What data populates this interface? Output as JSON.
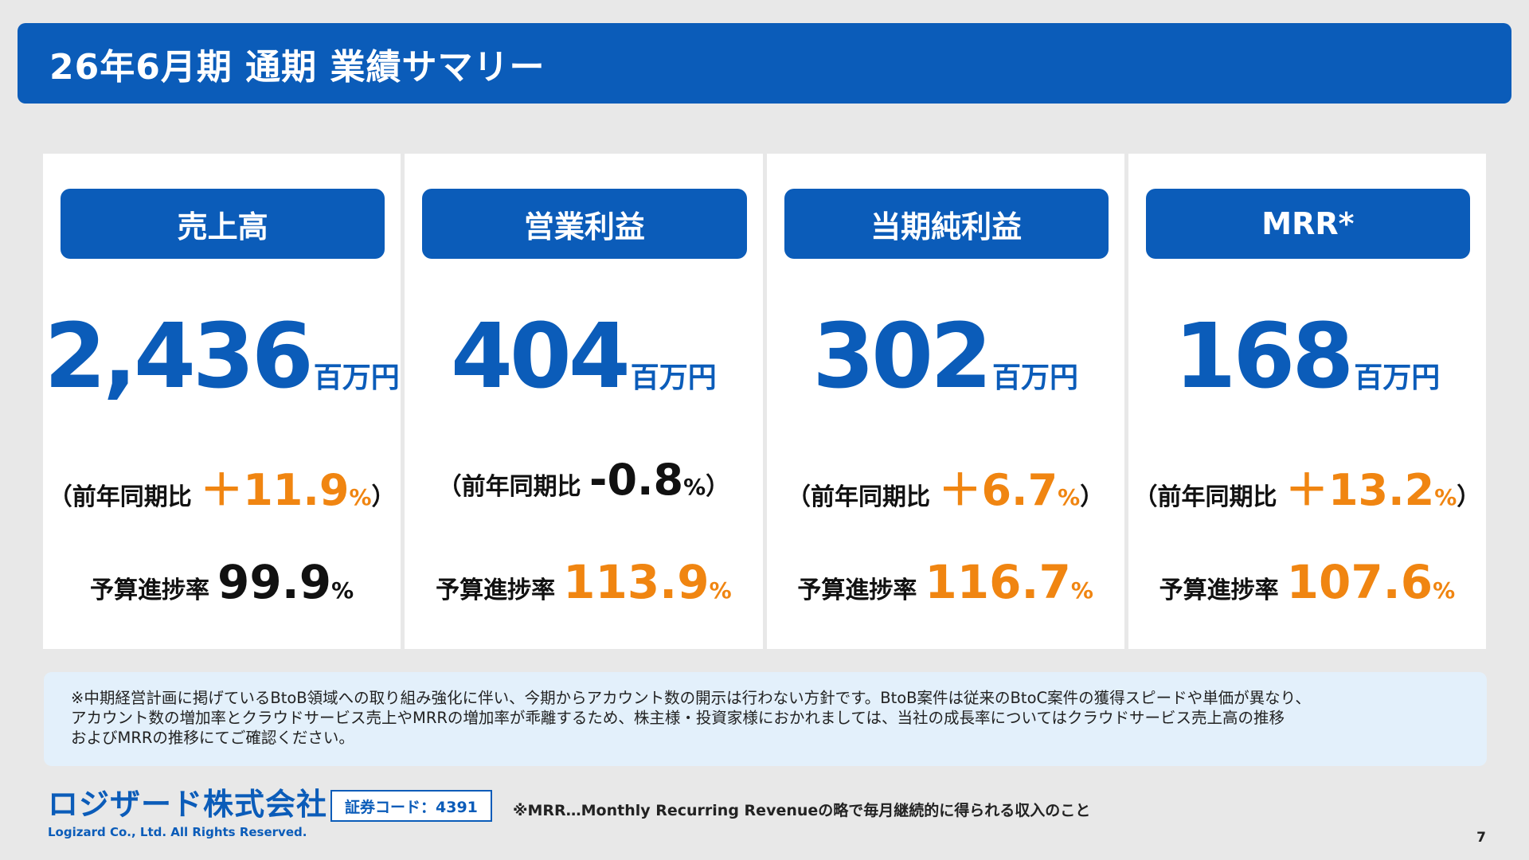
{
  "title": "26年6月期 通期 業績サマリー",
  "cards": [
    {
      "label": "売上高",
      "value": "2,436",
      "unit": "百万円",
      "yoy_prefix": "（前年同期比",
      "yoy_value": "＋11.9",
      "yoy_pct": "%",
      "yoy_suffix": "）",
      "budget_label": "予算進捗率",
      "budget_value": "99.9",
      "budget_pct": "%"
    },
    {
      "label": "営業利益",
      "value": "404",
      "unit": "百万円",
      "yoy_prefix": "（前年同期比",
      "yoy_value": "-0.8",
      "yoy_pct": "%",
      "yoy_suffix": "）",
      "budget_label": "予算進捗率",
      "budget_value": "113.9",
      "budget_pct": "%"
    },
    {
      "label": "当期純利益",
      "value": "302",
      "unit": "百万円",
      "yoy_prefix": "（前年同期比",
      "yoy_value": "＋6.7",
      "yoy_pct": "%",
      "yoy_suffix": "）",
      "budget_label": "予算進捗率",
      "budget_value": "116.7",
      "budget_pct": "%"
    },
    {
      "label": "MRR*",
      "value": "168",
      "unit": "百万円",
      "yoy_prefix": "（前年同期比",
      "yoy_value": "＋13.2",
      "yoy_pct": "%",
      "yoy_suffix": "）",
      "budget_label": "予算進捗率",
      "budget_value": "107.6",
      "budget_pct": "%"
    }
  ],
  "note": {
    "line1": "※中期経営計画に掲げているBtoB領域への取り組み強化に伴い、今期からアカウント数の開示は行わない方針です。BtoB案件は従来のBtoC案件の獲得スピードや単価が異なり、",
    "line2": "アカウント数の増加率とクラウドサービス売上やMRRの増加率が乖離するため、株主様・投資家様におかれましては、当社の成長率についてはクラウドサービス売上高の推移",
    "line3": "およびMRRの推移にてご確認ください。"
  },
  "footer": {
    "company": "ロジザード株式会社",
    "copyright": "Logizard Co., Ltd. All Rights Reserved.",
    "stock_code": "証券コード：4391",
    "mrr_note": "※MRR…Monthly Recurring Revenueの略で毎月継続的に得られる収入のこと",
    "page": "7"
  },
  "colors": {
    "brand": "#0b5cb9",
    "accent": "#f08511"
  }
}
